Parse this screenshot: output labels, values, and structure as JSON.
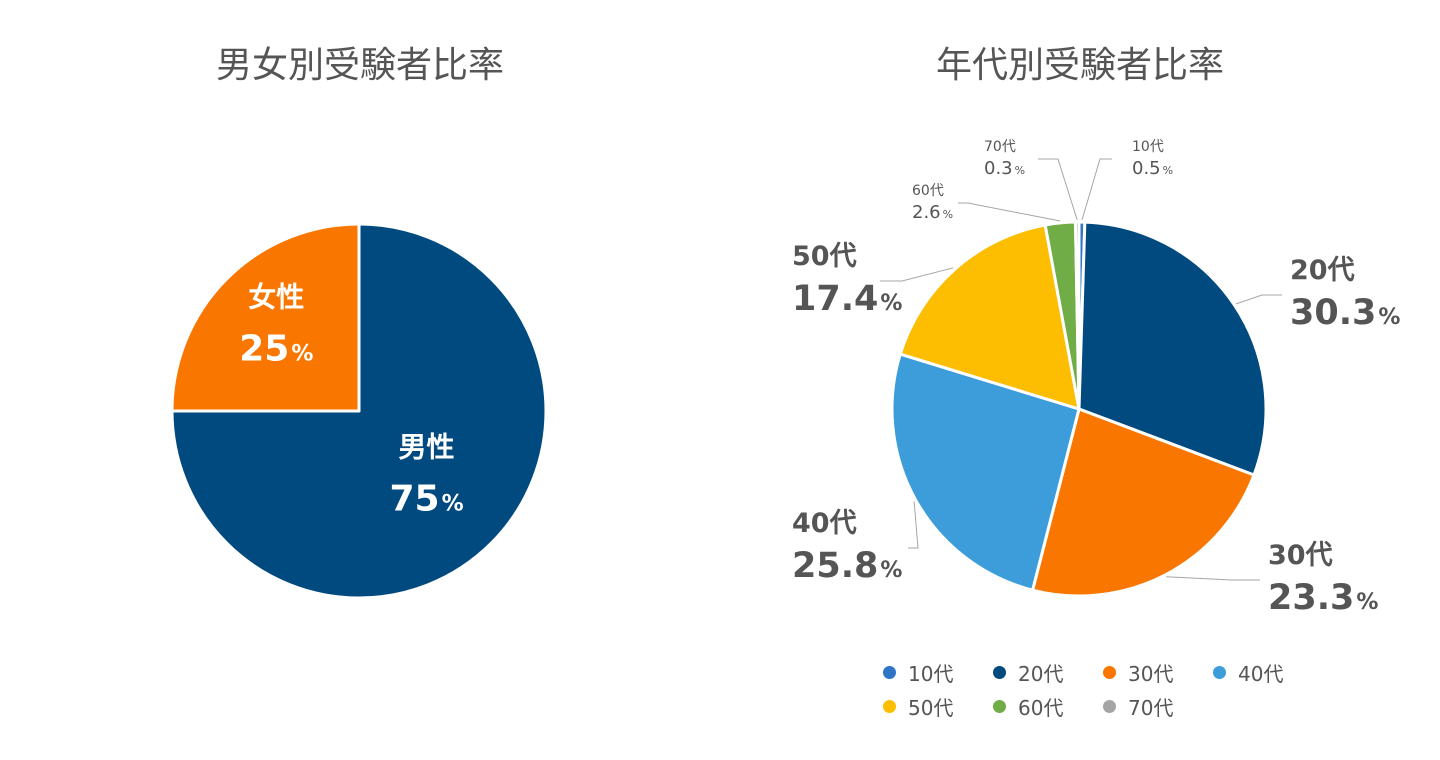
{
  "chart_data": [
    {
      "type": "pie",
      "title": "男女別受験者比率",
      "unit": "%",
      "slices": [
        {
          "label": "男性",
          "value": 75,
          "value_text": "75",
          "color": "#004A80"
        },
        {
          "label": "女性",
          "value": 25,
          "value_text": "25",
          "color": "#F97600"
        }
      ]
    },
    {
      "type": "pie",
      "title": "年代別受験者比率",
      "unit": "%",
      "legend_position": "bottom",
      "slices": [
        {
          "label": "10代",
          "value": 0.5,
          "value_text": "0.5",
          "color": "#2E75C7"
        },
        {
          "label": "20代",
          "value": 30.3,
          "value_text": "30.3",
          "color": "#004A80"
        },
        {
          "label": "30代",
          "value": 23.3,
          "value_text": "23.3",
          "color": "#F97600"
        },
        {
          "label": "40代",
          "value": 25.8,
          "value_text": "25.8",
          "color": "#3D9DDB"
        },
        {
          "label": "50代",
          "value": 17.4,
          "value_text": "17.4",
          "color": "#FDBD00"
        },
        {
          "label": "60代",
          "value": 2.6,
          "value_text": "2.6",
          "color": "#71AD47"
        },
        {
          "label": "70代",
          "value": 0.3,
          "value_text": "0.3",
          "color": "#A5A5A5"
        }
      ]
    }
  ]
}
